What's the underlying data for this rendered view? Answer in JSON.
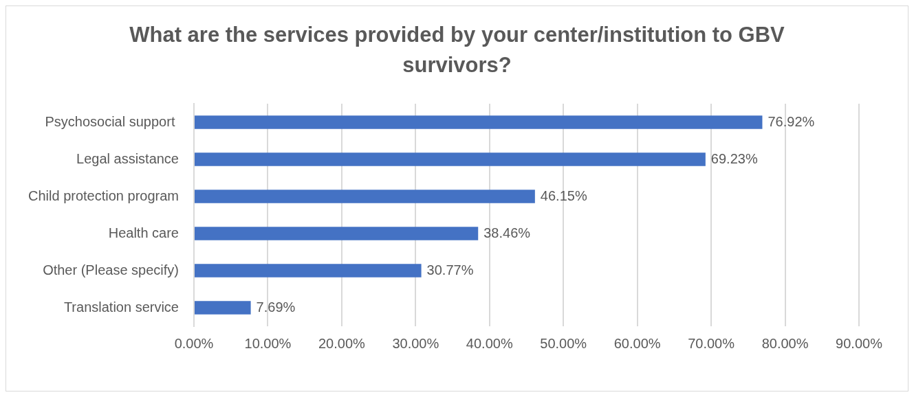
{
  "chart_data": {
    "type": "bar",
    "orientation": "horizontal",
    "title": "What are the services provided by your center/institution to GBV survivors?",
    "categories": [
      "Psychosocial support ",
      "Legal assistance",
      "Child protection program",
      "Health care",
      "Other (Please specify)",
      "Translation service"
    ],
    "values": [
      76.92,
      69.23,
      46.15,
      38.46,
      30.77,
      7.69
    ],
    "value_labels": [
      "76.92%",
      "69.23%",
      "46.15%",
      "38.46%",
      "30.77%",
      "7.69%"
    ],
    "color": "#4472c4",
    "xlim": [
      0,
      90
    ],
    "xticks": [
      {
        "value": 0,
        "label": "0.00%"
      },
      {
        "value": 10,
        "label": "10.00%"
      },
      {
        "value": 20,
        "label": "20.00%"
      },
      {
        "value": 30,
        "label": "30.00%"
      },
      {
        "value": 40,
        "label": "40.00%"
      },
      {
        "value": 50,
        "label": "50.00%"
      },
      {
        "value": 60,
        "label": "60.00%"
      },
      {
        "value": 70,
        "label": "70.00%"
      },
      {
        "value": 80,
        "label": "80.00%"
      },
      {
        "value": 90,
        "label": "90.00%"
      }
    ],
    "grid": "x",
    "legend": false
  }
}
